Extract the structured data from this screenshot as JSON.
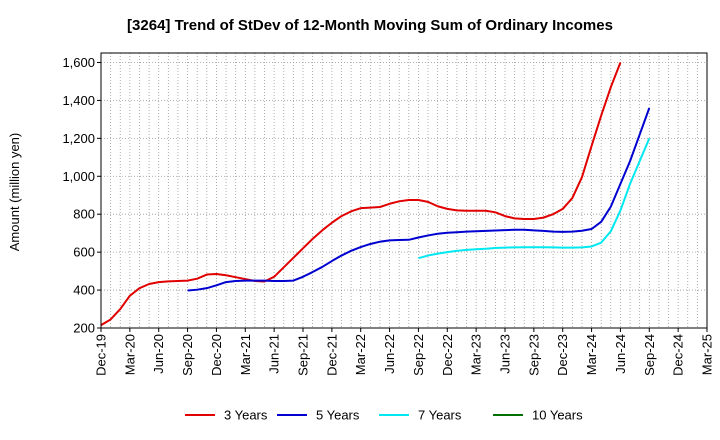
{
  "chart_data": {
    "type": "line",
    "title": "[3264]  Trend of StDev of 12-Month Moving Sum of Ordinary Incomes",
    "xlabel": "",
    "ylabel": "Amount (million yen)",
    "ylim": [
      200,
      1650
    ],
    "yticks": [
      200,
      400,
      600,
      800,
      1000,
      1200,
      1400,
      1600
    ],
    "ytick_labels": [
      "200",
      "400",
      "600",
      "800",
      "1,000",
      "1,200",
      "1,400",
      "1,600"
    ],
    "xtick_labels": [
      "Dec-19",
      "Mar-20",
      "Jun-20",
      "Sep-20",
      "Dec-20",
      "Mar-21",
      "Jun-21",
      "Sep-21",
      "Dec-21",
      "Mar-22",
      "Jun-22",
      "Sep-22",
      "Dec-22",
      "Mar-23",
      "Jun-23",
      "Sep-23",
      "Dec-23",
      "Mar-24",
      "Jun-24",
      "Sep-24",
      "Dec-24",
      "Mar-25"
    ],
    "grid": true,
    "legend_position": "bottom",
    "series": [
      {
        "name": "3 Years",
        "color": "#e00000",
        "start_index": 0,
        "values": [
          215,
          245,
          300,
          370,
          410,
          432,
          442,
          446,
          448,
          450,
          460,
          482,
          485,
          478,
          468,
          458,
          448,
          445,
          470,
          520,
          570,
          620,
          670,
          715,
          755,
          790,
          815,
          832,
          835,
          838,
          855,
          868,
          875,
          875,
          865,
          842,
          828,
          820,
          818,
          818,
          818,
          810,
          790,
          778,
          775,
          775,
          782,
          800,
          828,
          885,
          995,
          1160,
          1320,
          1470,
          1600
        ]
      },
      {
        "name": "5 Years",
        "color": "#0000d0",
        "start_index": 9,
        "values": [
          398,
          402,
          410,
          425,
          442,
          448,
          450,
          450,
          450,
          448,
          448,
          450,
          470,
          495,
          522,
          553,
          582,
          607,
          627,
          643,
          655,
          662,
          664,
          665,
          677,
          688,
          697,
          702,
          705,
          708,
          710,
          712,
          714,
          716,
          718,
          718,
          715,
          712,
          708,
          707,
          708,
          713,
          722,
          760,
          840,
          960,
          1080,
          1220,
          1360
        ]
      },
      {
        "name": "7 Years",
        "color": "#00e8f0",
        "start_index": 33,
        "values": [
          568,
          582,
          592,
          600,
          607,
          612,
          615,
          618,
          622,
          624,
          625,
          626,
          626,
          626,
          625,
          624,
          624,
          625,
          630,
          650,
          710,
          820,
          960,
          1080,
          1200
        ]
      },
      {
        "name": "10 Years",
        "color": "#007000",
        "start_index": 0,
        "values": []
      }
    ]
  }
}
